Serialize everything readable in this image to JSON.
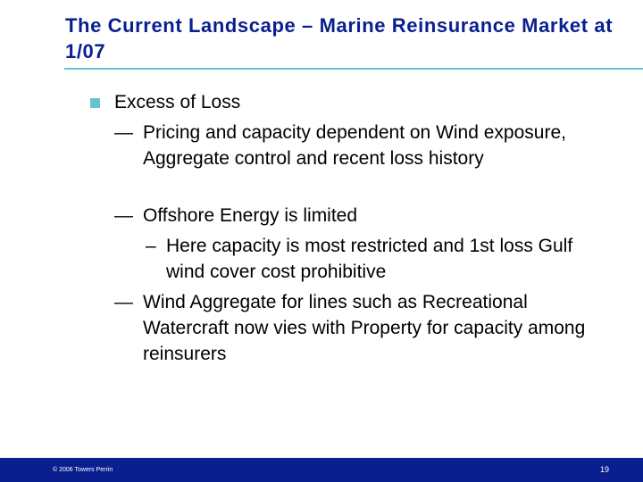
{
  "title": "The Current Landscape – Marine Reinsurance Market at 1/07",
  "colors": {
    "title": "#0a1f8f",
    "accent": "#66c2cf",
    "footer_bg": "#0a1f8f",
    "text": "#000000"
  },
  "bullets": {
    "level1": {
      "icon": "square-bullet-icon",
      "text": "Excess of Loss"
    },
    "dash": "—",
    "subdash": "–",
    "items": [
      {
        "text": "Pricing and capacity dependent on Wind exposure, Aggregate control and recent loss history"
      },
      {
        "text": "Offshore Energy is limited",
        "sub": "Here capacity is most restricted and 1st loss Gulf wind cover cost prohibitive"
      },
      {
        "text": "Wind Aggregate for lines such as Recreational Watercraft now vies with Property for capacity among reinsurers"
      }
    ]
  },
  "footer": {
    "copyright": "© 2006 Towers Perrin",
    "page_number": "19"
  }
}
